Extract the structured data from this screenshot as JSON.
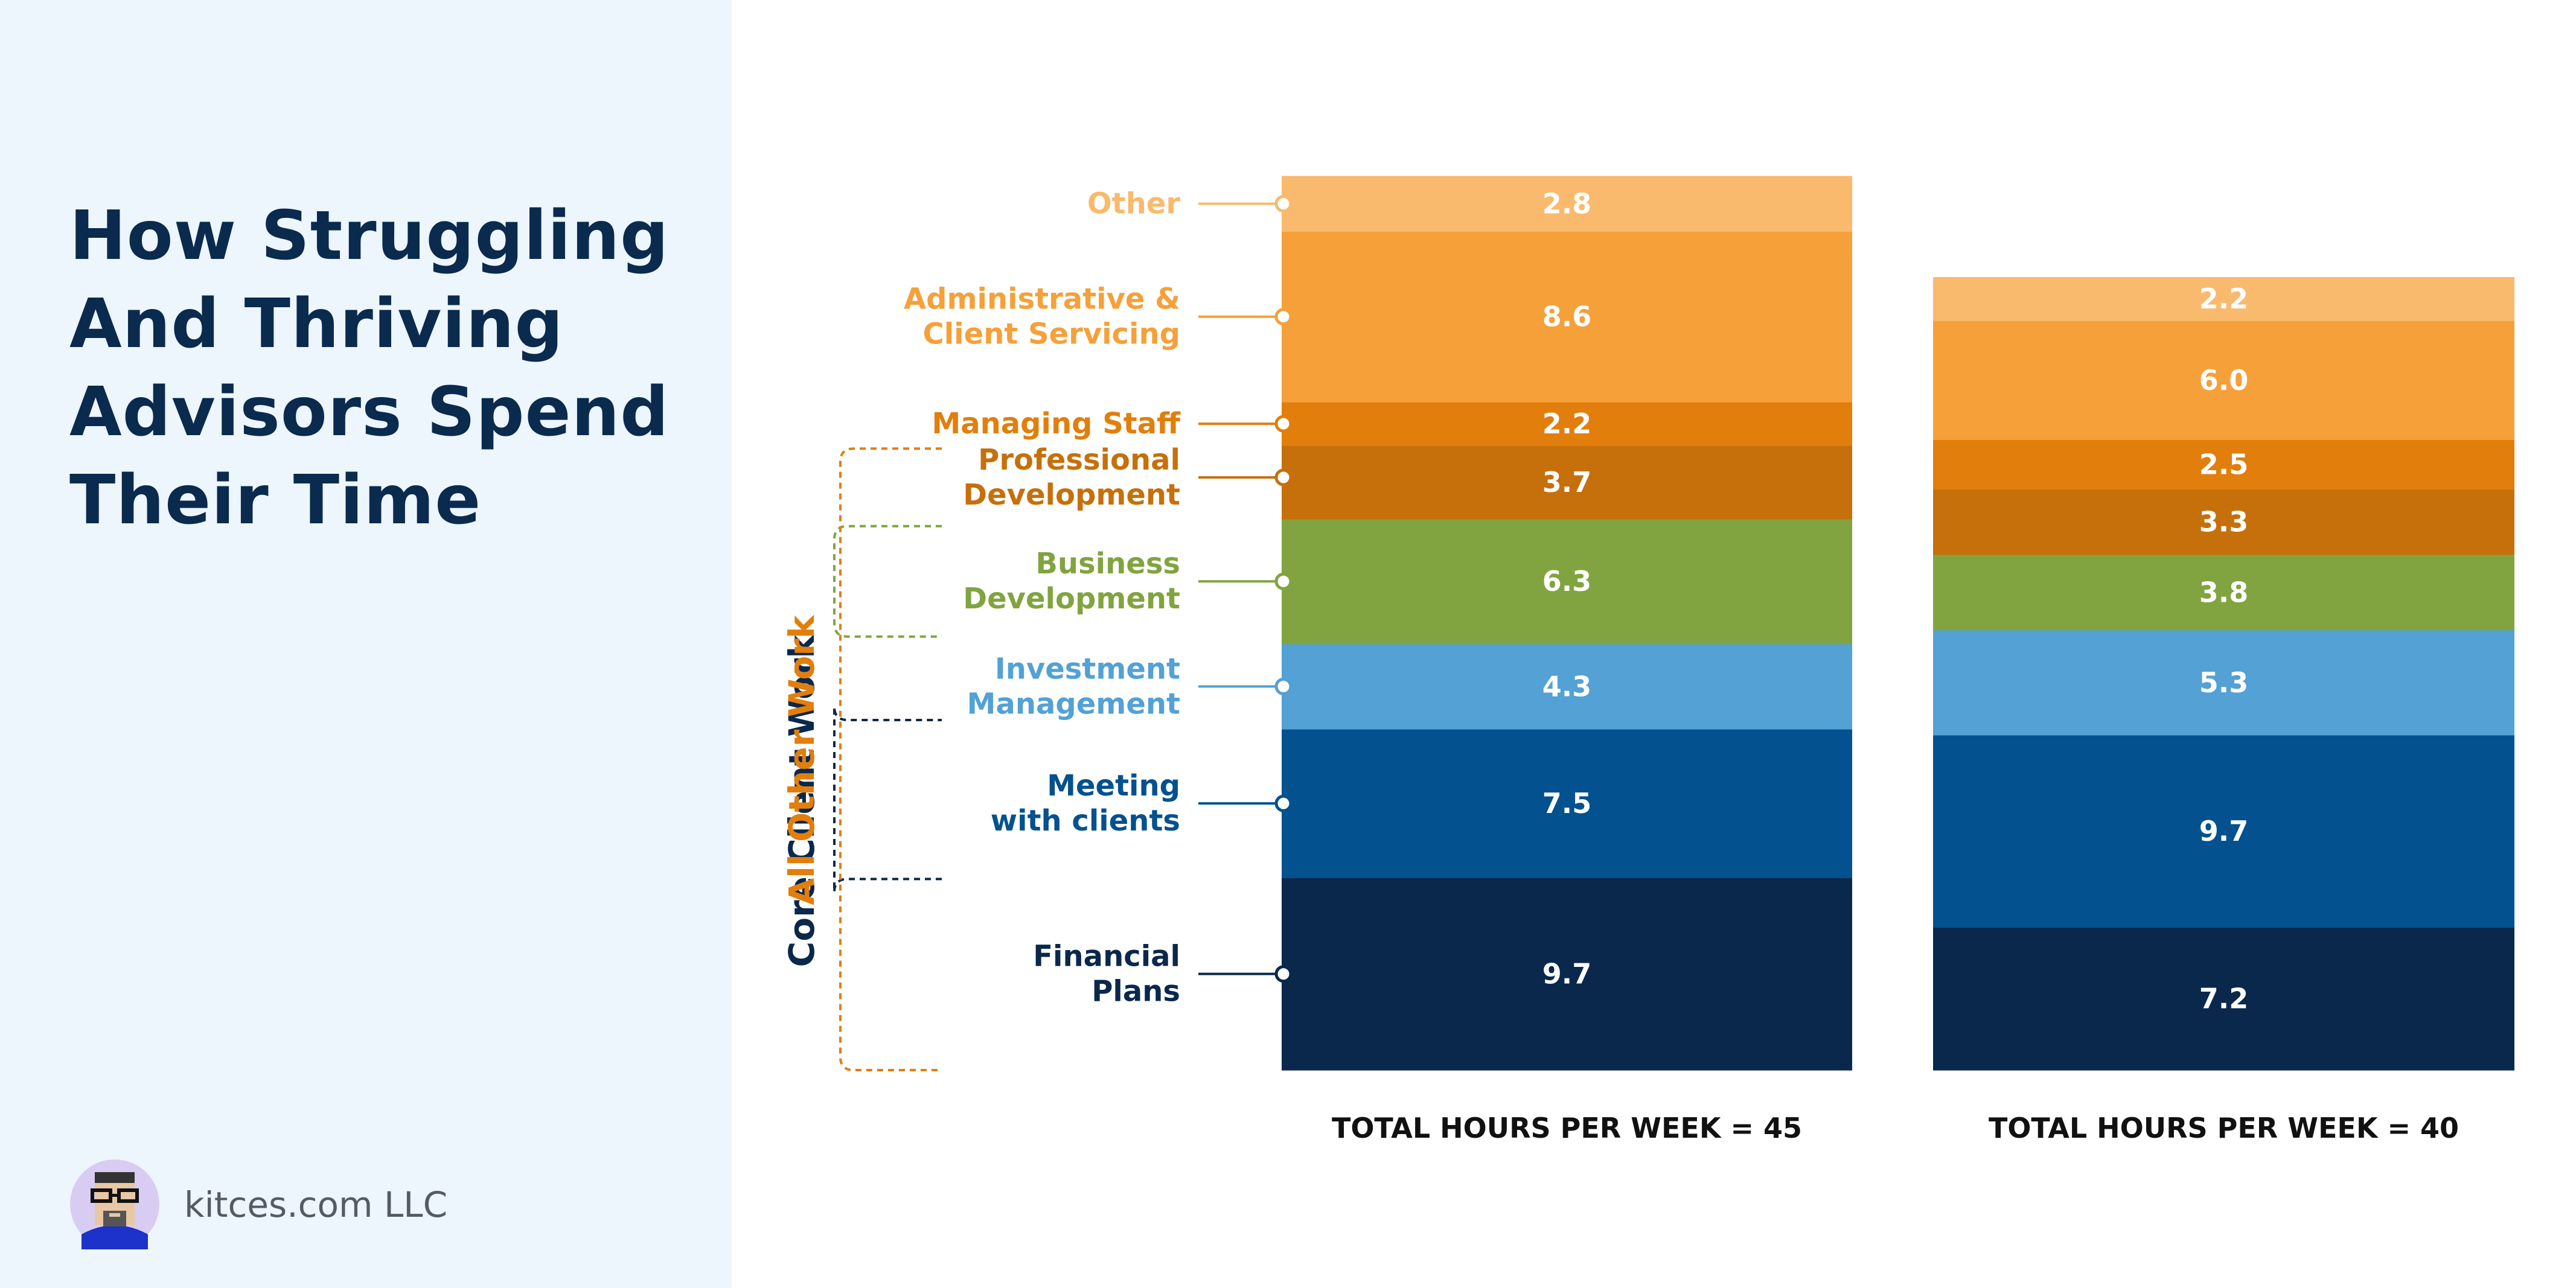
{
  "title": "How Struggling And Thriving Advisors Spend Their Time",
  "footer": {
    "text": "kitces.com LLC",
    "logo_icon": "pixel-avatar-icon"
  },
  "chart_data": {
    "type": "bar",
    "stacked": true,
    "title": "How Struggling And Thriving Advisors Spend Their Time",
    "categories": [
      "Financial Plans",
      "Meeting with clients",
      "Investment Management",
      "Business Development",
      "Professional Development",
      "Managing Staff",
      "Administrative & Client Servicing",
      "Other"
    ],
    "category_labels": [
      [
        "Financial",
        "Plans"
      ],
      [
        "Meeting",
        "with clients"
      ],
      [
        "Investment",
        "Management"
      ],
      [
        "Business",
        "Development"
      ],
      [
        "Professional",
        "Development"
      ],
      [
        "Managing Staff"
      ],
      [
        "Administrative &",
        "Client Servicing"
      ],
      [
        "Other"
      ]
    ],
    "colors": [
      "#0a284b",
      "#03518e",
      "#53a1d5",
      "#81a440",
      "#c6700b",
      "#e27e0c",
      "#f6a03a",
      "#f9ba6e"
    ],
    "label_colors": [
      "#0a284b",
      "#03518e",
      "#53a1d5",
      "#81a440",
      "#c6700b",
      "#e27e0c",
      "#f6a03a",
      "#f9ba6e"
    ],
    "series": [
      {
        "values": [
          9.7,
          7.5,
          4.3,
          6.3,
          3.7,
          2.2,
          8.6,
          2.8
        ],
        "value_labels": [
          "9.7",
          "7.5",
          "4.3",
          "6.3",
          "3.7",
          "2.2",
          "8.6",
          "2.8"
        ],
        "total_label": "TOTAL HOURS PER WEEK = 45"
      },
      {
        "values": [
          7.2,
          9.7,
          5.3,
          3.8,
          3.3,
          2.5,
          6.0,
          2.2
        ],
        "value_labels": [
          "7.2",
          "9.7",
          "5.3",
          "3.8",
          "3.3",
          "2.5",
          "6.0",
          "2.2"
        ],
        "total_label": "TOTAL HOURS PER WEEK = 40"
      }
    ],
    "groups": [
      {
        "label": "Core Client Work",
        "categories": [
          0,
          1,
          2
        ],
        "color": "#0a284b"
      },
      {
        "label": "",
        "categories": [
          3
        ],
        "color": "#81a440"
      },
      {
        "label": "All Other Work",
        "categories": [
          4,
          5,
          6,
          7
        ],
        "color": "#e27e0c"
      }
    ],
    "grid": false,
    "legend": "left"
  }
}
